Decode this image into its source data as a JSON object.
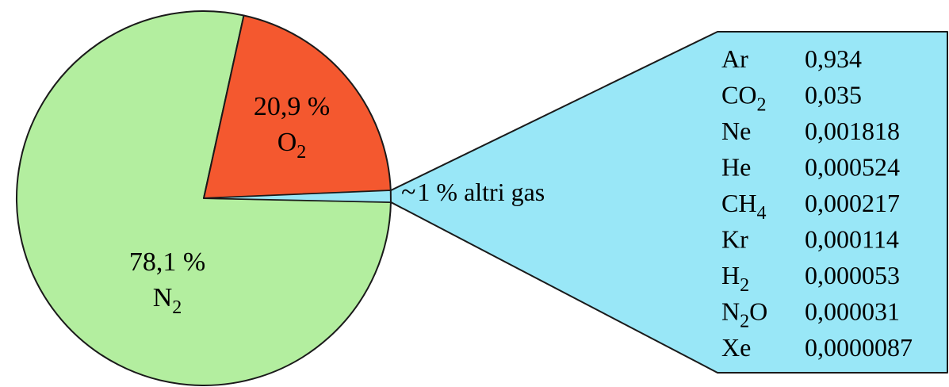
{
  "chart_data": {
    "type": "pie",
    "slices": [
      {
        "name_main": "N",
        "name_sub": "2",
        "value_label": "78,1 %",
        "value": 78.1,
        "color": "#b3ee9f"
      },
      {
        "name_main": "O",
        "name_sub": "2",
        "value_label": "20,9 %",
        "value": 20.9,
        "color": "#f4582f"
      },
      {
        "name_main": "",
        "name_sub": "",
        "value_label": "",
        "value": 1.0,
        "color": "#99e7f7"
      }
    ],
    "annotation": {
      "prefix": "~",
      "text": "1 % altri gas"
    },
    "breakout_table": {
      "background": "#99e7f7",
      "rows": [
        {
          "gas_main": "Ar",
          "gas_sub": "",
          "gas_tail": "",
          "value": "0,934"
        },
        {
          "gas_main": "CO",
          "gas_sub": "2",
          "gas_tail": "",
          "value": "0,035"
        },
        {
          "gas_main": "Ne",
          "gas_sub": "",
          "gas_tail": "",
          "value": "0,001818"
        },
        {
          "gas_main": "He",
          "gas_sub": "",
          "gas_tail": "",
          "value": "0,000524"
        },
        {
          "gas_main": "CH",
          "gas_sub": "4",
          "gas_tail": "",
          "value": "0,000217"
        },
        {
          "gas_main": "Kr",
          "gas_sub": "",
          "gas_tail": "",
          "value": "0,000114"
        },
        {
          "gas_main": "H",
          "gas_sub": "2",
          "gas_tail": "",
          "value": "0,000053"
        },
        {
          "gas_main": "N",
          "gas_sub": "2",
          "gas_tail": "O",
          "value": "0,000031"
        },
        {
          "gas_main": "Xe",
          "gas_sub": "",
          "gas_tail": "",
          "value": "0,0000087"
        }
      ]
    }
  }
}
